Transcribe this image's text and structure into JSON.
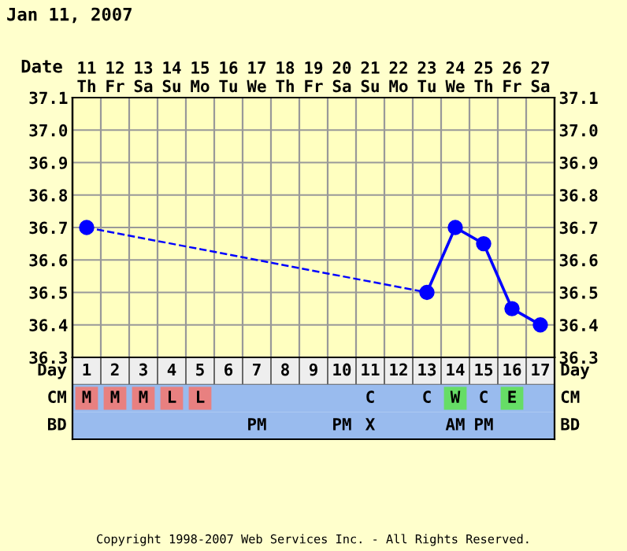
{
  "chart_data": [
    {
      "type": "line",
      "title": "Jan 11, 2007",
      "xlabel": "Date",
      "categories": [
        "11\nTh",
        "12\nFr",
        "13\nSa",
        "14\nSu",
        "15\nMo",
        "16\nTu",
        "17\nWe",
        "18\nTh",
        "19\nFr",
        "20\nSa",
        "21\nSu",
        "22\nMo",
        "23\nTu",
        "24\nWe",
        "25\nTh",
        "26\nFr",
        "27\nSa"
      ],
      "series": [
        {
          "color": "#0000ff",
          "values": [
            36.7,
            null,
            null,
            null,
            null,
            null,
            null,
            null,
            null,
            null,
            null,
            null,
            36.5,
            36.7,
            36.65,
            36.45,
            36.4
          ]
        }
      ],
      "ylim": [
        36.3,
        37.1
      ],
      "yticks": [
        36.3,
        36.4,
        36.5,
        36.6,
        36.7,
        36.8,
        36.9,
        {
          "value": 37,
          "label": "37.0"
        },
        37.1
      ],
      "y2lim": [
        36.3,
        37.1
      ],
      "y2ticks": [
        36.3,
        36.4,
        36.5,
        36.6,
        36.7,
        36.8,
        36.9,
        {
          "value": 37,
          "label": "37.0"
        },
        37.1
      ],
      "grid": true,
      "marker": "circle",
      "line_style": "solid"
    },
    {
      "type": "heatmap",
      "xlabel": "Day",
      "categories": [
        "1",
        "2",
        "3",
        "4",
        "5",
        "6",
        "7",
        "8",
        "9",
        "10",
        "11",
        "12",
        "13",
        "14",
        "15",
        "16",
        "17"
      ],
      "y_categories": [
        "CM",
        "BD"
      ],
      "y2_categories": [
        "CM",
        "BD"
      ],
      "cells": [
        [
          null,
          null,
          null,
          null,
          null,
          null,
          null,
          null,
          null,
          null,
          null,
          null,
          null,
          null,
          null,
          null,
          null
        ],
        [
          null,
          null,
          null,
          null,
          null,
          null,
          null,
          null,
          null,
          null,
          null,
          null,
          null,
          null,
          null,
          null,
          null
        ]
      ],
      "cell_labels": [
        [
          "M",
          "M",
          "M",
          "L",
          "L",
          null,
          null,
          null,
          null,
          null,
          "C",
          null,
          "C",
          "W",
          "C",
          "E",
          null
        ],
        [
          null,
          null,
          null,
          null,
          null,
          null,
          "PM",
          null,
          null,
          "PM",
          "X",
          null,
          null,
          "AM",
          "PM",
          null,
          null
        ]
      ],
      "colors": [
        [
          "#e88080",
          "#e88080",
          "#e88080",
          "#e88080",
          "#e88080",
          "#99bbee",
          "#99bbee",
          "#99bbee",
          "#99bbee",
          "#99bbee",
          "#99bbee",
          "#99bbee",
          "#99bbee",
          "#66dd66",
          "#99bbee",
          "#66dd66",
          "#99bbee"
        ],
        [
          "#99bbee",
          "#99bbee",
          "#99bbee",
          "#99bbee",
          "#99bbee",
          "#99bbee",
          "#99bbee",
          "#99bbee",
          "#99bbee",
          "#99bbee",
          "#99bbee",
          "#99bbee",
          "#99bbee",
          "#99bbee",
          "#99bbee",
          "#99bbee",
          "#99bbee"
        ]
      ],
      "annotations": [
        "Copyright 1998-2007 Web Services Inc. - All Rights Reserved."
      ]
    }
  ]
}
